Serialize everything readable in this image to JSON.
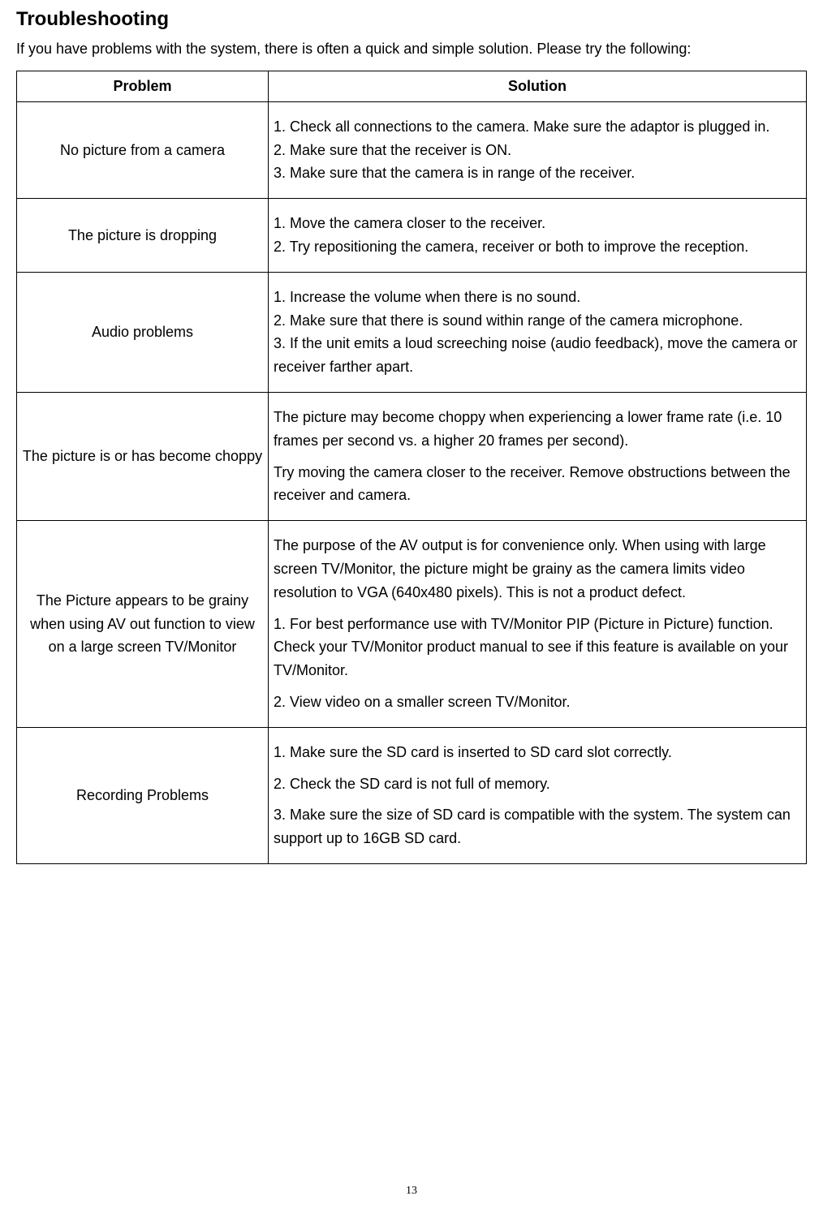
{
  "heading": "Troubleshooting",
  "intro": "If you have problems with the system, there is often a quick and simple solution. Please try the following:",
  "table": {
    "header_problem": "Problem",
    "header_solution": "Solution",
    "rows": [
      {
        "problem": "No picture from a camera",
        "solution_parts": [
          "1. Check all connections to the camera. Make sure the adaptor is plugged in.",
          "2. Make sure that the receiver is ON.",
          "3. Make sure that the camera is in range of the receiver."
        ]
      },
      {
        "problem": "The picture is dropping",
        "solution_parts": [
          "1. Move the camera closer to the receiver.",
          "2. Try repositioning the camera, receiver or both to improve the reception."
        ]
      },
      {
        "problem": "Audio problems",
        "solution_parts": [
          "1. Increase the volume when there is no sound.",
          "2. Make sure that there is sound within range of the camera microphone.",
          "3. If the unit emits a loud screeching noise (audio feedback), move the camera or receiver farther apart."
        ]
      },
      {
        "problem": "The picture is or has become choppy",
        "solution_parts": [
          "The picture may become choppy when experiencing a lower frame rate (i.e. 10 frames per second vs. a higher 20 frames per second).",
          "Try moving the camera closer to the receiver. Remove obstructions between the receiver and camera."
        ]
      },
      {
        "problem": "The Picture appears to be grainy when using AV out function to view on a large screen TV/Monitor",
        "solution_parts": [
          "The purpose of the AV output is for convenience only. When using with large screen TV/Monitor, the picture might be grainy as the camera limits video resolution to VGA (640x480 pixels). This is not a product defect.",
          "1. For best performance use with TV/Monitor PIP (Picture in Picture) function. Check your TV/Monitor product manual to see if this feature is available on your TV/Monitor.",
          "2. View video on a smaller screen TV/Monitor."
        ]
      },
      {
        "problem": "Recording Problems",
        "solution_parts": [
          "1. Make sure the SD card is inserted to SD card slot correctly.",
          "2. Check the SD card is not full of memory.",
          "3. Make sure the size of SD card is compatible with the system. The system can support up to 16GB SD card."
        ]
      }
    ]
  },
  "page_number": "13"
}
